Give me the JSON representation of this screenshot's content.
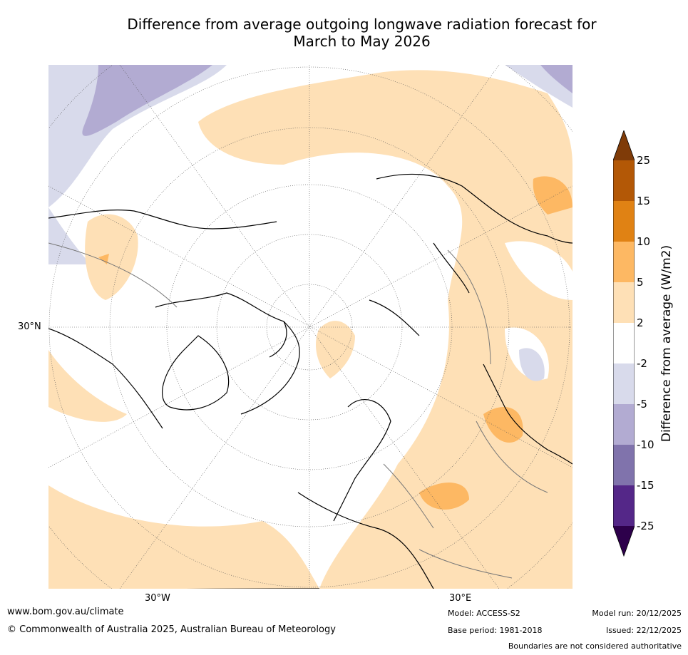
{
  "title_line1": "Difference from average outgoing longwave radiation forecast for",
  "title_line2": "March to May 2026",
  "map": {
    "latitude_label": "30°N",
    "longitude_labels": {
      "west": "30°W",
      "east": "30°E"
    }
  },
  "colorbar": {
    "label": "Difference from average (W/m2)",
    "ticks": [
      "25",
      "15",
      "10",
      "5",
      "2",
      "-2",
      "-5",
      "-10",
      "-15",
      "-25"
    ],
    "colors": {
      "over": "#7f3b08",
      "15_to_25": "#b35806",
      "10_to_15": "#e08214",
      "5_to_10": "#fdb863",
      "2_to_5": "#fee0b6",
      "neutral": "#ffffff",
      "minus5_to_minus2": "#d8daeb",
      "minus10_to_minus5": "#b2abd2",
      "minus15_to_minus10": "#8073ac",
      "minus25_to_minus15": "#542788",
      "under": "#2d004b"
    }
  },
  "footer": {
    "website": "www.bom.gov.au/climate",
    "copyright": "© Commonwealth of Australia 2025, Australian Bureau of Meteorology",
    "model": "Model: ACCESS-S2",
    "base_period": "Base period: 1981-2018",
    "model_run": "Model run: 20/12/2025",
    "issued": "Issued: 22/12/2025",
    "disclaimer": "Boundaries are not considered authoritative"
  }
}
